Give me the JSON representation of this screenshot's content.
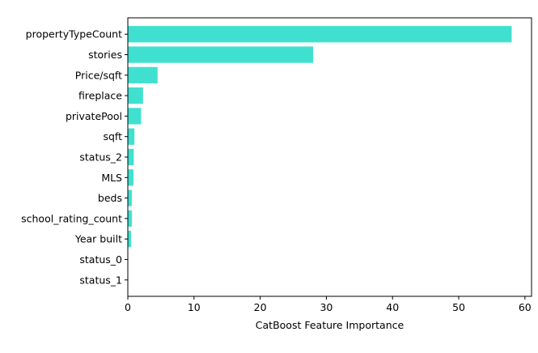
{
  "chart_data": {
    "type": "bar",
    "orientation": "horizontal",
    "title": "",
    "xlabel": "CatBoost Feature Importance",
    "ylabel": "",
    "categories": [
      "propertyTypeCount",
      "stories",
      "Price/sqft",
      "fireplace",
      "privatePool",
      "sqft",
      "status_2",
      "MLS",
      "beds",
      "school_rating_count",
      "Year built",
      "status_0",
      "status_1"
    ],
    "values": [
      58.0,
      28.0,
      4.5,
      2.3,
      2.0,
      1.0,
      0.9,
      0.85,
      0.6,
      0.6,
      0.5,
      0.0,
      0.0
    ],
    "xlim": [
      0,
      61
    ],
    "xticks": [
      0,
      10,
      20,
      30,
      40,
      50,
      60
    ],
    "grid": false,
    "bar_color": "#40E0D0"
  }
}
